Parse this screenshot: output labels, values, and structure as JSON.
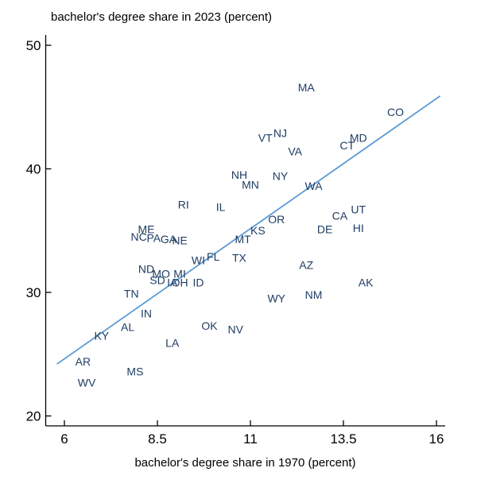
{
  "figure": {
    "y_axis_title": "bachelor's degree share in 2023 (percent)",
    "x_axis_title": "bachelor's degree share in 1970 (percent)"
  },
  "colors": {
    "state_label": "#1f3d63",
    "fit_line": "#5b9bd5",
    "axis": "#000000",
    "background": "#ffffff"
  },
  "chart_data": {
    "type": "scatter",
    "title": "",
    "xlabel": "bachelor's degree share in 1970 (percent)",
    "ylabel": "bachelor's degree share in 2023 (percent)",
    "xlim": [
      5.5,
      16.2
    ],
    "ylim": [
      19.2,
      50.8
    ],
    "x_ticks": [
      "6",
      "8.5",
      "11",
      "13.5",
      "16"
    ],
    "x_tick_values": [
      6,
      8.5,
      11,
      13.5,
      16
    ],
    "y_ticks": [
      "20",
      "30",
      "40",
      "50"
    ],
    "y_tick_values": [
      20,
      30,
      40,
      50
    ],
    "grid": false,
    "marker_style": "state-abbreviation-labels",
    "points": [
      {
        "label": "MA",
        "x": 12.5,
        "y": 46.6
      },
      {
        "label": "CO",
        "x": 14.9,
        "y": 44.6
      },
      {
        "label": "NJ",
        "x": 11.8,
        "y": 42.9
      },
      {
        "label": "VT",
        "x": 11.4,
        "y": 42.5
      },
      {
        "label": "MD",
        "x": 13.9,
        "y": 42.5
      },
      {
        "label": "CT",
        "x": 13.6,
        "y": 41.9
      },
      {
        "label": "VA",
        "x": 12.2,
        "y": 41.4
      },
      {
        "label": "NH",
        "x": 10.7,
        "y": 39.5
      },
      {
        "label": "NY",
        "x": 11.8,
        "y": 39.4
      },
      {
        "label": "MN",
        "x": 11.0,
        "y": 38.7
      },
      {
        "label": "WA",
        "x": 12.7,
        "y": 38.6
      },
      {
        "label": "RI",
        "x": 9.2,
        "y": 37.1
      },
      {
        "label": "IL",
        "x": 10.2,
        "y": 36.9
      },
      {
        "label": "UT",
        "x": 13.9,
        "y": 36.7
      },
      {
        "label": "CA",
        "x": 13.4,
        "y": 36.2
      },
      {
        "label": "OR",
        "x": 11.7,
        "y": 35.9
      },
      {
        "label": "HI",
        "x": 13.9,
        "y": 35.2
      },
      {
        "label": "ME",
        "x": 8.2,
        "y": 35.1
      },
      {
        "label": "DE",
        "x": 13.0,
        "y": 35.1
      },
      {
        "label": "KS",
        "x": 11.2,
        "y": 35.0
      },
      {
        "label": "NC",
        "x": 8.0,
        "y": 34.5
      },
      {
        "label": "PA",
        "x": 8.4,
        "y": 34.4
      },
      {
        "label": "GA",
        "x": 8.8,
        "y": 34.3
      },
      {
        "label": "MT",
        "x": 10.8,
        "y": 34.3
      },
      {
        "label": "NE",
        "x": 9.1,
        "y": 34.2
      },
      {
        "label": "FL",
        "x": 10.0,
        "y": 32.9
      },
      {
        "label": "TX",
        "x": 10.7,
        "y": 32.8
      },
      {
        "label": "WI",
        "x": 9.6,
        "y": 32.6
      },
      {
        "label": "AZ",
        "x": 12.5,
        "y": 32.2
      },
      {
        "label": "ND",
        "x": 8.2,
        "y": 31.9
      },
      {
        "label": "MO",
        "x": 8.6,
        "y": 31.5
      },
      {
        "label": "MI",
        "x": 9.1,
        "y": 31.5
      },
      {
        "label": "SD",
        "x": 8.5,
        "y": 31.0
      },
      {
        "label": "IA",
        "x": 8.9,
        "y": 30.8
      },
      {
        "label": "OH",
        "x": 9.1,
        "y": 30.8
      },
      {
        "label": "ID",
        "x": 9.6,
        "y": 30.8
      },
      {
        "label": "AK",
        "x": 14.1,
        "y": 30.8
      },
      {
        "label": "TN",
        "x": 7.8,
        "y": 29.9
      },
      {
        "label": "NM",
        "x": 12.7,
        "y": 29.8
      },
      {
        "label": "WY",
        "x": 11.7,
        "y": 29.5
      },
      {
        "label": "IN",
        "x": 8.2,
        "y": 28.3
      },
      {
        "label": "OK",
        "x": 9.9,
        "y": 27.3
      },
      {
        "label": "AL",
        "x": 7.7,
        "y": 27.2
      },
      {
        "label": "NV",
        "x": 10.6,
        "y": 27.0
      },
      {
        "label": "KY",
        "x": 7.0,
        "y": 26.5
      },
      {
        "label": "LA",
        "x": 8.9,
        "y": 25.9
      },
      {
        "label": "AR",
        "x": 6.5,
        "y": 24.4
      },
      {
        "label": "MS",
        "x": 7.9,
        "y": 23.6
      },
      {
        "label": "WV",
        "x": 6.6,
        "y": 22.7
      }
    ],
    "fit_line": {
      "x1": 5.8,
      "y1": 24.2,
      "x2": 16.1,
      "y2": 45.9
    },
    "legend": "none"
  }
}
